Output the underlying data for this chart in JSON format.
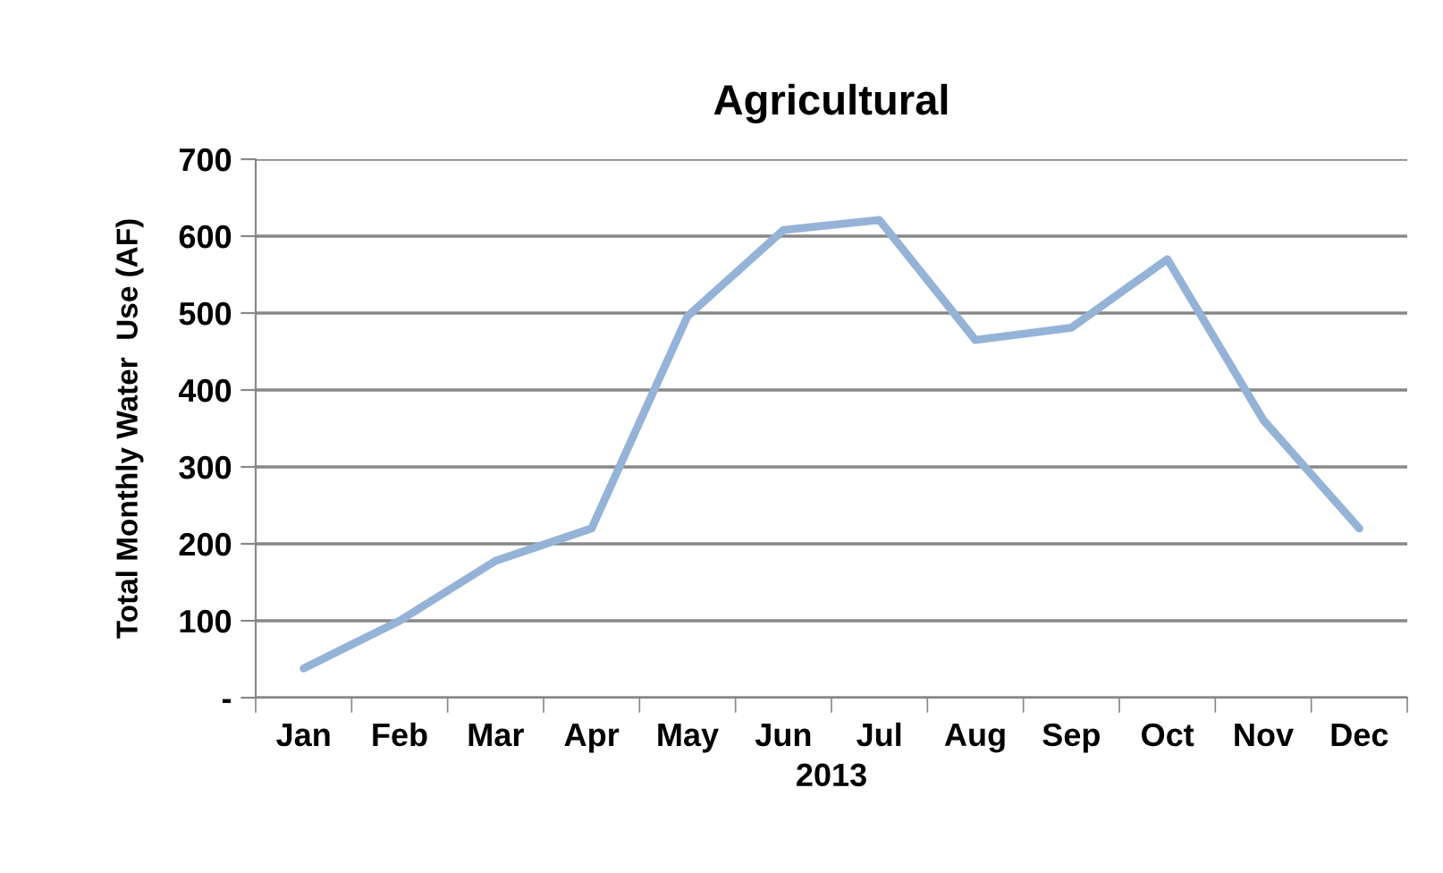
{
  "chart_data": {
    "type": "line",
    "title": "Agricultural",
    "xlabel": "2013",
    "ylabel": "Total Monthly Water  Use (AF)",
    "categories": [
      "Jan",
      "Feb",
      "Mar",
      "Apr",
      "May",
      "Jun",
      "Jul",
      "Aug",
      "Sep",
      "Oct",
      "Nov",
      "Dec"
    ],
    "series": [
      {
        "color": "#95b3d7",
        "values": [
          38,
          100,
          178,
          220,
          496,
          608,
          621,
          465,
          481,
          570,
          361,
          220
        ]
      }
    ],
    "ylim": [
      0,
      700
    ],
    "yticks": [
      {
        "value": 0,
        "label": "-"
      },
      100,
      200,
      300,
      400,
      500,
      600,
      700
    ],
    "grid": "y",
    "legend": false,
    "marker": "none",
    "line_style": "solid"
  }
}
